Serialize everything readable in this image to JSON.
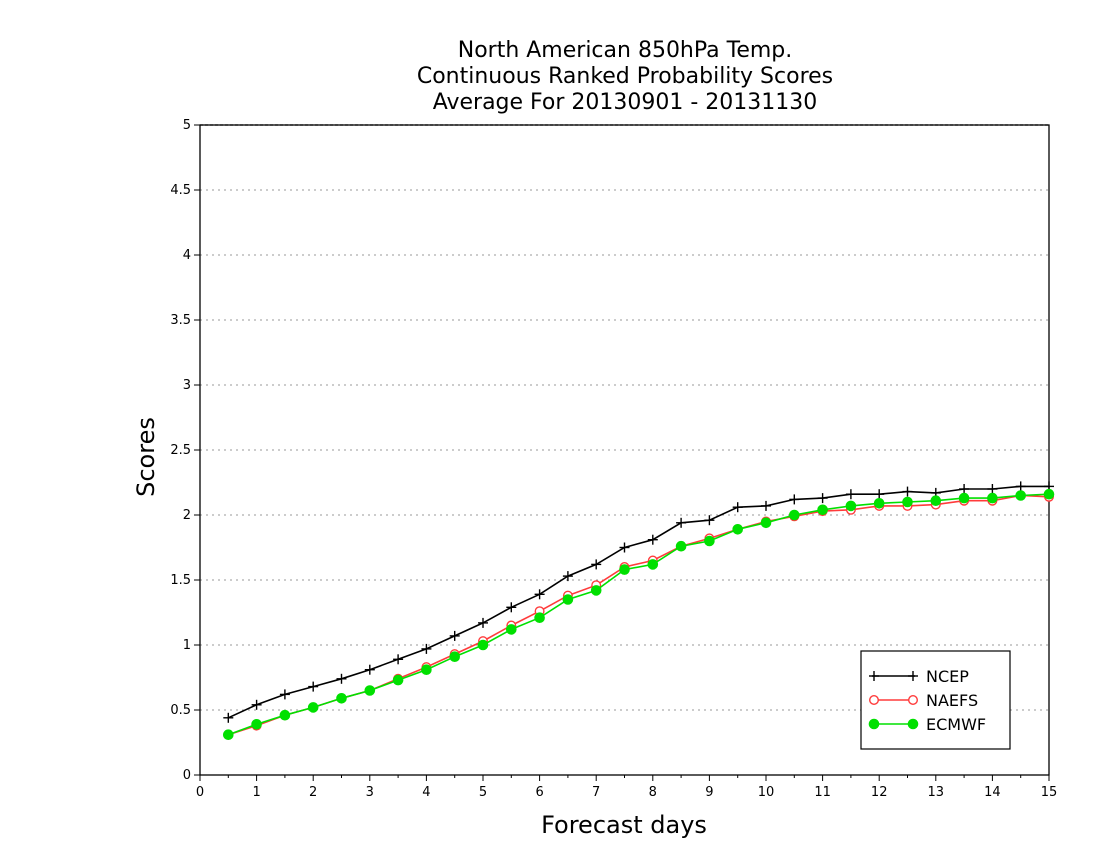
{
  "chart_data": {
    "type": "line",
    "title_lines": [
      "North American 850hPa Temp.",
      "Continuous Ranked Probability Scores",
      "Average For 20130901 - 20131130"
    ],
    "xlabel": "Forecast days",
    "ylabel": "Scores",
    "xlim": [
      0,
      15
    ],
    "ylim": [
      0,
      5
    ],
    "x_ticks": [
      0,
      1,
      2,
      3,
      4,
      5,
      6,
      7,
      8,
      9,
      10,
      11,
      12,
      13,
      14,
      15
    ],
    "y_ticks": [
      0,
      0.5,
      1,
      1.5,
      2,
      2.5,
      3,
      3.5,
      4,
      4.5,
      5
    ],
    "y_tick_labels": [
      "0",
      "0.5",
      "1",
      "1.5",
      "2",
      "2.5",
      "3",
      "3.5",
      "4",
      "4.5",
      "5"
    ],
    "grid": "horizontal dotted",
    "legend_position": "bottom-right",
    "x": [
      0.5,
      1,
      1.5,
      2,
      2.5,
      3,
      3.5,
      4,
      4.5,
      5,
      5.5,
      6,
      6.5,
      7,
      7.5,
      8,
      8.5,
      9,
      9.5,
      10,
      10.5,
      11,
      11.5,
      12,
      12.5,
      13,
      13.5,
      14,
      14.5,
      15
    ],
    "series": [
      {
        "name": "NCEP",
        "color": "#000000",
        "marker": "plus",
        "values": [
          0.44,
          0.54,
          0.62,
          0.68,
          0.74,
          0.81,
          0.89,
          0.97,
          1.07,
          1.17,
          1.29,
          1.39,
          1.53,
          1.62,
          1.75,
          1.81,
          1.94,
          1.96,
          2.06,
          2.07,
          2.12,
          2.13,
          2.16,
          2.16,
          2.18,
          2.17,
          2.2,
          2.2,
          2.22,
          2.22
        ]
      },
      {
        "name": "NAEFS",
        "color": "#ff3b3b",
        "marker": "open-circle",
        "values": [
          0.31,
          0.38,
          0.46,
          0.52,
          0.59,
          0.65,
          0.74,
          0.83,
          0.93,
          1.03,
          1.15,
          1.26,
          1.38,
          1.46,
          1.6,
          1.65,
          1.76,
          1.82,
          1.89,
          1.95,
          1.99,
          2.03,
          2.04,
          2.07,
          2.07,
          2.08,
          2.11,
          2.11,
          2.15,
          2.14
        ]
      },
      {
        "name": "ECMWF",
        "color": "#00e000",
        "marker": "filled-circle",
        "values": [
          0.31,
          0.39,
          0.46,
          0.52,
          0.59,
          0.65,
          0.73,
          0.81,
          0.91,
          1.0,
          1.12,
          1.21,
          1.35,
          1.42,
          1.58,
          1.62,
          1.76,
          1.8,
          1.89,
          1.94,
          2.0,
          2.04,
          2.07,
          2.09,
          2.1,
          2.11,
          2.13,
          2.13,
          2.15,
          2.16
        ]
      }
    ]
  }
}
